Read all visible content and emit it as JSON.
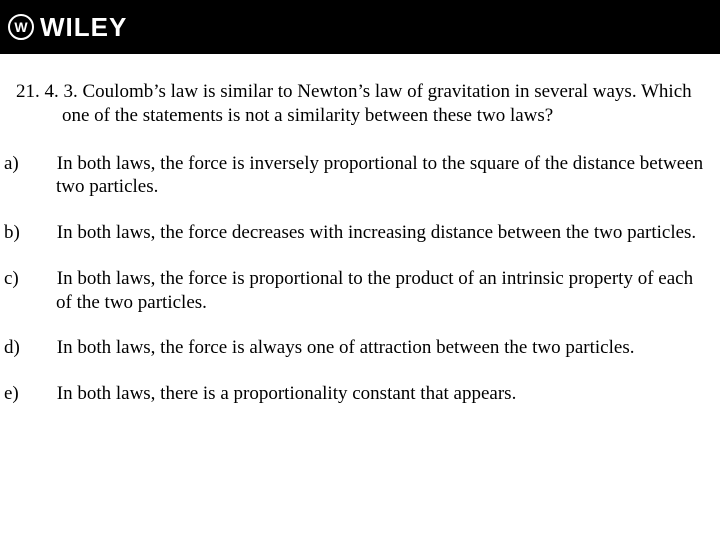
{
  "header": {
    "logo_symbol": "W",
    "logo_text": "WILEY"
  },
  "question": {
    "number": "21. 4. 3.",
    "text": "Coulomb’s law is similar to Newton’s law of gravitation in several ways. Which one of the statements is not a similarity between these two laws?"
  },
  "options": [
    {
      "label": "a)",
      "text": "In both laws, the force is inversely proportional to the square of the distance between two particles."
    },
    {
      "label": "b)",
      "text": "In both laws, the force decreases with increasing distance between the two particles."
    },
    {
      "label": "c)",
      "text": "In both laws, the force is proportional to the product of an intrinsic property of each of the two particles."
    },
    {
      "label": "d)",
      "text": "In both laws, the force is always one of attraction between the two particles."
    },
    {
      "label": "e)",
      "text": "In both laws, there is a proportionality constant that appears."
    }
  ],
  "style": {
    "header_bg": "#000000",
    "header_fg": "#ffffff",
    "body_bg": "#ffffff",
    "text_color": "#000000",
    "font_family": "Times New Roman",
    "question_fontsize": 19,
    "option_fontsize": 19,
    "slide_width": 720,
    "slide_height": 540
  }
}
